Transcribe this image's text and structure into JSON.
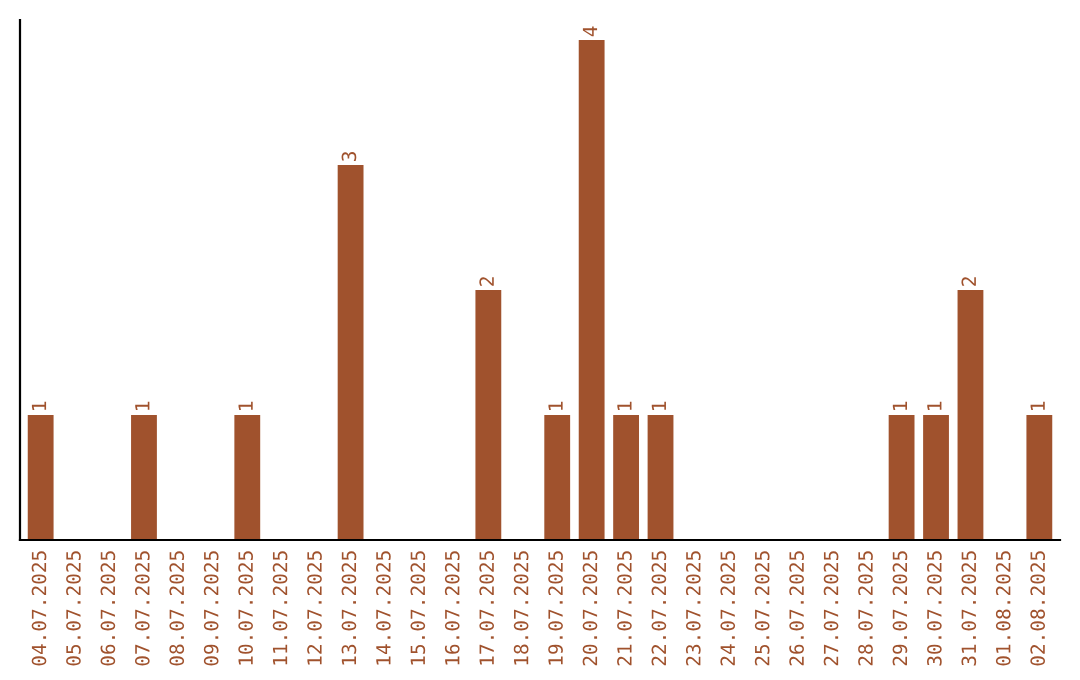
{
  "chart_data": {
    "type": "bar",
    "categories": [
      "04.07.2025",
      "05.07.2025",
      "06.07.2025",
      "07.07.2025",
      "08.07.2025",
      "09.07.2025",
      "10.07.2025",
      "11.07.2025",
      "12.07.2025",
      "13.07.2025",
      "14.07.2025",
      "15.07.2025",
      "16.07.2025",
      "17.07.2025",
      "18.07.2025",
      "19.07.2025",
      "20.07.2025",
      "21.07.2025",
      "22.07.2025",
      "23.07.2025",
      "24.07.2025",
      "25.07.2025",
      "26.07.2025",
      "27.07.2025",
      "28.07.2025",
      "29.07.2025",
      "30.07.2025",
      "31.07.2025",
      "01.08.2025",
      "02.08.2025"
    ],
    "values": [
      1,
      0,
      0,
      1,
      0,
      0,
      1,
      0,
      0,
      3,
      0,
      0,
      0,
      2,
      0,
      1,
      4,
      1,
      1,
      0,
      0,
      0,
      0,
      0,
      0,
      1,
      1,
      2,
      0,
      1
    ],
    "value_labels": [
      "1",
      null,
      null,
      "1",
      null,
      null,
      "1",
      null,
      null,
      "3",
      null,
      null,
      null,
      "2",
      null,
      "1",
      "4",
      "1",
      "1",
      null,
      null,
      null,
      null,
      null,
      null,
      "1",
      "1",
      "2",
      null,
      "1"
    ],
    "color": "#a0522d",
    "ylim": [
      0,
      4.16
    ],
    "tick_labels": "x",
    "grid": false,
    "legend": false
  }
}
